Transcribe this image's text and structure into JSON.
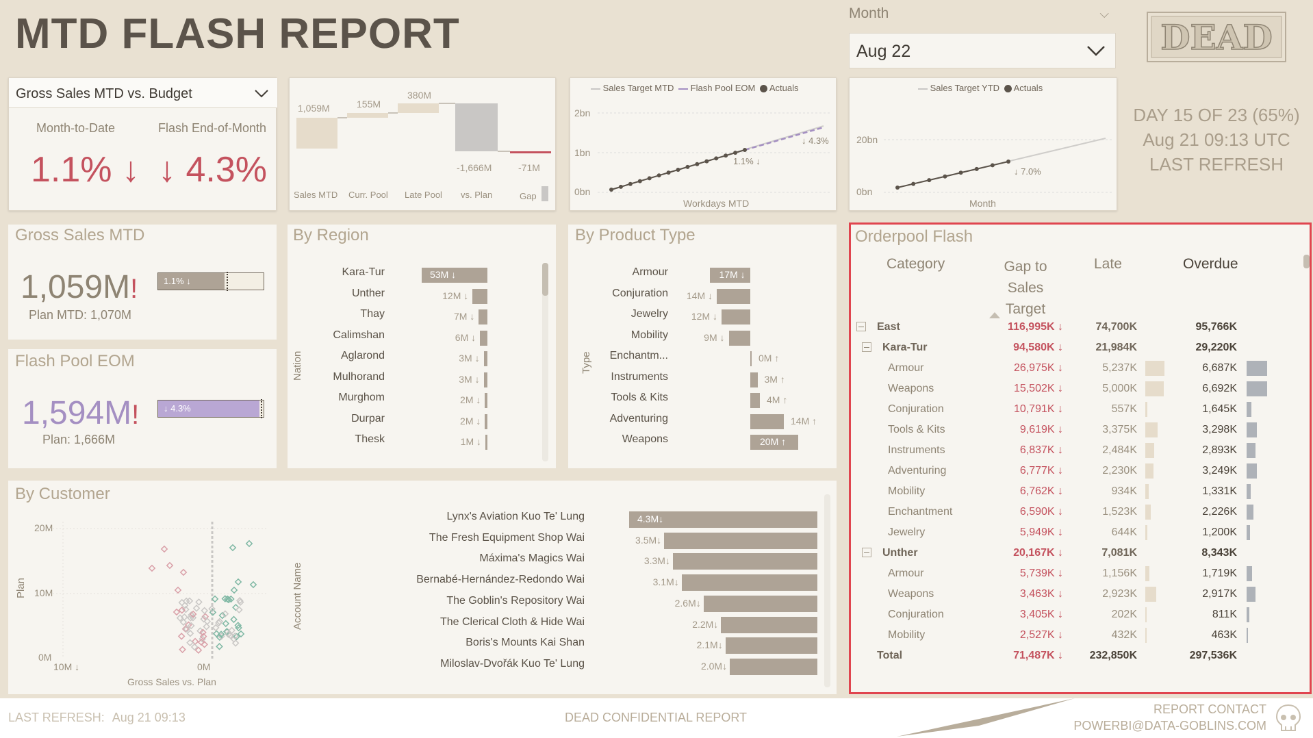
{
  "title": "MTD FLASH REPORT",
  "month": {
    "label": "Month",
    "value": "Aug 22"
  },
  "logo": "DEAD",
  "kpi": {
    "selector": "Gross Sales MTD vs. Budget",
    "mtd_label": "Month-to-Date",
    "mtd_value": "1.1% ↓",
    "eom_label": "Flash End-of-Month",
    "eom_value": "↓ 4.3%"
  },
  "waterfall": {
    "values": [
      "1,059M",
      "155M",
      "380M",
      "-1,666M",
      "-71M"
    ],
    "categories": [
      "Sales MTD",
      "Curr. Pool",
      "Late Pool",
      "vs. Plan",
      "Gap"
    ]
  },
  "mtd_line": {
    "legend": [
      "Sales Target MTD",
      "Flash Pool EOM",
      "Actuals"
    ],
    "y_ticks": [
      "2bn",
      "1bn",
      "0bn"
    ],
    "xlabel": "Workdays MTD",
    "annotations": [
      "↓ 4.3%",
      "1.1% ↓"
    ]
  },
  "ytd_line": {
    "legend": [
      "Sales Target YTD",
      "Actuals"
    ],
    "y_ticks": [
      "20bn",
      "0bn"
    ],
    "xlabel": "Month",
    "annotation": "↓ 7.0%"
  },
  "refresh_box": {
    "line1": "DAY 15 OF 23 (65%)",
    "line2": "Aug 21 09:13 UTC",
    "line3": "LAST REFRESH"
  },
  "gross_sales": {
    "title": "Gross Sales MTD",
    "value": "1,059M",
    "flag": "!",
    "bar_label": "1.1% ↓",
    "plan": "Plan MTD: 1,070M",
    "fill_pct": 0.63
  },
  "flash_pool": {
    "title": "Flash Pool EOM",
    "value": "1,594M",
    "flag": "!",
    "bar_label": "↓ 4.3%",
    "plan": "Plan: 1,666M",
    "fill_pct": 0.96
  },
  "region": {
    "title": "By Region",
    "axis": "Nation",
    "items": [
      {
        "name": "Kara-Tur",
        "label": "53M ↓",
        "v": 53
      },
      {
        "name": "Unther",
        "label": "12M ↓",
        "v": 12
      },
      {
        "name": "Thay",
        "label": "7M ↓",
        "v": 7
      },
      {
        "name": "Calimshan",
        "label": "6M ↓",
        "v": 6
      },
      {
        "name": "Aglarond",
        "label": "3M ↓",
        "v": 3
      },
      {
        "name": "Mulhorand",
        "label": "3M ↓",
        "v": 3
      },
      {
        "name": "Murghom",
        "label": "2M ↓",
        "v": 2
      },
      {
        "name": "Durpar",
        "label": "2M ↓",
        "v": 2
      },
      {
        "name": "Thesk",
        "label": "1M ↓",
        "v": 1
      }
    ]
  },
  "product": {
    "title": "By Product Type",
    "axis": "Type",
    "items": [
      {
        "name": "Armour",
        "label": "17M ↓",
        "v": -17
      },
      {
        "name": "Conjuration",
        "label": "14M ↓",
        "v": -14
      },
      {
        "name": "Jewelry",
        "label": "12M ↓",
        "v": -12
      },
      {
        "name": "Mobility",
        "label": "9M ↓",
        "v": -9
      },
      {
        "name": "Enchantm...",
        "label": "0M ↑",
        "v": 0
      },
      {
        "name": "Instruments",
        "label": "3M ↑",
        "v": 3
      },
      {
        "name": "Tools & Kits",
        "label": "4M ↑",
        "v": 4
      },
      {
        "name": "Adventuring",
        "label": "14M ↑",
        "v": 14
      },
      {
        "name": "Weapons",
        "label": "20M ↑",
        "v": 20
      }
    ]
  },
  "customer": {
    "title": "By Customer",
    "scatter": {
      "y_ticks": [
        "20M",
        "10M",
        "0M"
      ],
      "x_ticks": [
        "10M ↓",
        "0M"
      ],
      "xlabel": "Gross Sales vs. Plan",
      "ylabel": "Plan"
    },
    "axis": "Account Name",
    "items": [
      {
        "name": "Lynx's Aviation Kuo Te' Lung",
        "label": "4.3M↓",
        "v": 4.3
      },
      {
        "name": "The Fresh Equipment Shop Wai",
        "label": "3.5M↓",
        "v": 3.5
      },
      {
        "name": "Máxima's Magics Wai",
        "label": "3.3M↓",
        "v": 3.3
      },
      {
        "name": "Bernabé-Hernández-Redondo Wai",
        "label": "3.1M↓",
        "v": 3.1
      },
      {
        "name": "The Goblin's Repository Wai",
        "label": "2.6M↓",
        "v": 2.6
      },
      {
        "name": "The Clerical Cloth & Hide Wai",
        "label": "2.2M↓",
        "v": 2.2
      },
      {
        "name": "Boris's Mounts Kai Shan",
        "label": "2.1M↓",
        "v": 2.1
      },
      {
        "name": "Miloslav-Dvořák Kuo Te' Lung",
        "label": "2.0M↓",
        "v": 2.0
      }
    ]
  },
  "orderpool": {
    "title": "Orderpool Flash",
    "headers": [
      "Category",
      "Gap to Sales Target",
      "Late",
      "Overdue"
    ],
    "rows": [
      {
        "level": 0,
        "cat": "East",
        "gap": "116,995K ↓",
        "late": "74,700K",
        "overdue": "95,766K"
      },
      {
        "level": 1,
        "cat": "Kara-Tur",
        "gap": "94,580K ↓",
        "late": "21,984K",
        "overdue": "29,220K"
      },
      {
        "level": 2,
        "cat": "Armour",
        "gap": "26,975K ↓",
        "late": "5,237K",
        "late_v": 5237,
        "overdue": "6,687K",
        "od_v": 6687
      },
      {
        "level": 2,
        "cat": "Weapons",
        "gap": "15,502K ↓",
        "late": "5,000K",
        "late_v": 5000,
        "overdue": "6,692K",
        "od_v": 6692
      },
      {
        "level": 2,
        "cat": "Conjuration",
        "gap": "10,791K ↓",
        "late": "557K",
        "late_v": 557,
        "overdue": "1,645K",
        "od_v": 1645
      },
      {
        "level": 2,
        "cat": "Tools & Kits",
        "gap": "9,619K ↓",
        "late": "3,375K",
        "late_v": 3375,
        "overdue": "3,298K",
        "od_v": 3298
      },
      {
        "level": 2,
        "cat": "Instruments",
        "gap": "6,837K ↓",
        "late": "2,484K",
        "late_v": 2484,
        "overdue": "2,893K",
        "od_v": 2893
      },
      {
        "level": 2,
        "cat": "Adventuring",
        "gap": "6,777K ↓",
        "late": "2,230K",
        "late_v": 2230,
        "overdue": "3,249K",
        "od_v": 3249
      },
      {
        "level": 2,
        "cat": "Mobility",
        "gap": "6,762K ↓",
        "late": "934K",
        "late_v": 934,
        "overdue": "1,331K",
        "od_v": 1331
      },
      {
        "level": 2,
        "cat": "Enchantment",
        "gap": "6,590K ↓",
        "late": "1,523K",
        "late_v": 1523,
        "overdue": "2,226K",
        "od_v": 2226
      },
      {
        "level": 2,
        "cat": "Jewelry",
        "gap": "5,949K ↓",
        "late": "644K",
        "late_v": 644,
        "overdue": "1,200K",
        "od_v": 1200
      },
      {
        "level": 1,
        "cat": "Unther",
        "gap": "20,167K ↓",
        "late": "7,081K",
        "overdue": "8,343K"
      },
      {
        "level": 2,
        "cat": "Armour",
        "gap": "5,739K ↓",
        "late": "1,156K",
        "late_v": 1156,
        "overdue": "1,719K",
        "od_v": 1719
      },
      {
        "level": 2,
        "cat": "Weapons",
        "gap": "3,463K ↓",
        "late": "2,923K",
        "late_v": 2923,
        "overdue": "2,917K",
        "od_v": 2917
      },
      {
        "level": 2,
        "cat": "Conjuration",
        "gap": "3,405K ↓",
        "late": "202K",
        "late_v": 202,
        "overdue": "811K",
        "od_v": 811
      },
      {
        "level": 2,
        "cat": "Mobility",
        "gap": "2,527K ↓",
        "late": "432K",
        "late_v": 432,
        "overdue": "463K",
        "od_v": 463
      }
    ],
    "total": {
      "cat": "Total",
      "gap": "71,487K ↓",
      "late": "232,850K",
      "overdue": "297,536K"
    }
  },
  "footer": {
    "refresh_label": "LAST REFRESH:",
    "refresh_value": "Aug 21 09:13",
    "center": "DEAD CONFIDENTIAL REPORT",
    "contact1": "REPORT CONTACT",
    "contact2": "POWERBI@DATA-GOBLINS.COM"
  }
}
